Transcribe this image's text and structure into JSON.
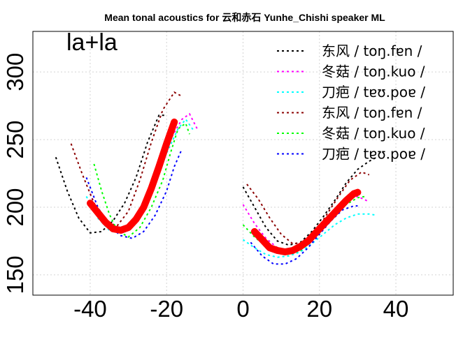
{
  "chart_data": {
    "type": "line",
    "title": "Mean tonal acoustics for 云和赤石 Yunhe_Chishi speaker ML",
    "panel_label": "la+la",
    "xlabel": "",
    "ylabel": "",
    "xlim": [
      -55,
      55
    ],
    "ylim": [
      135,
      330
    ],
    "x_ticks": [
      -40,
      -20,
      0,
      20,
      40
    ],
    "y_ticks": [
      150,
      200,
      250,
      300
    ],
    "x_tick_labels": [
      "-40",
      "-20",
      "0",
      "20",
      "40"
    ],
    "y_tick_labels": [
      "150",
      "200",
      "250",
      "300"
    ],
    "grid": true,
    "legend_position": "top-right",
    "legend": [
      {
        "label": "东风 / toŋ.fɐn /",
        "color": "#000000"
      },
      {
        "label": "冬菇 / toŋ.kuo /",
        "color": "#ff00ff"
      },
      {
        "label": "刀疤 / tɐʊ.poɐ /",
        "color": "#00ffff"
      },
      {
        "label": "东风 / toŋ.fɐn /",
        "color": "#8b0000"
      },
      {
        "label": "冬菇 / toŋ.kuo /",
        "color": "#00ff00"
      },
      {
        "label": "刀疤 / tɐʊ.poɐ /",
        "color": "#0000ff"
      }
    ],
    "series": [
      {
        "color": "#000000",
        "style": "dashed",
        "first": [
          [
            -49,
            237
          ],
          [
            -46,
            212
          ],
          [
            -43,
            192
          ],
          [
            -40,
            181
          ],
          [
            -37,
            182
          ],
          [
            -34,
            190
          ],
          [
            -31,
            203
          ],
          [
            -28,
            222
          ],
          [
            -25,
            248
          ],
          [
            -22,
            268
          ],
          [
            -20,
            268
          ]
        ],
        "second": [
          [
            0,
            215
          ],
          [
            3,
            200
          ],
          [
            6,
            185
          ],
          [
            9,
            175
          ],
          [
            12,
            172
          ],
          [
            15,
            174
          ],
          [
            18,
            182
          ],
          [
            21,
            193
          ],
          [
            24,
            205
          ],
          [
            27,
            218
          ],
          [
            30,
            228
          ],
          [
            33,
            234
          ],
          [
            35,
            237
          ]
        ]
      },
      {
        "color": "#ff00ff",
        "style": "dashed",
        "first": [
          [
            -40,
            210
          ],
          [
            -37,
            190
          ],
          [
            -34,
            182
          ],
          [
            -31,
            184
          ],
          [
            -28,
            193
          ],
          [
            -25,
            208
          ],
          [
            -22,
            228
          ],
          [
            -19,
            250
          ],
          [
            -16,
            265
          ],
          [
            -14,
            269
          ],
          [
            -12,
            258
          ]
        ],
        "second": [
          [
            0,
            202
          ],
          [
            3,
            188
          ],
          [
            6,
            177
          ],
          [
            9,
            170
          ],
          [
            12,
            168
          ],
          [
            15,
            170
          ],
          [
            18,
            178
          ],
          [
            21,
            188
          ],
          [
            24,
            198
          ],
          [
            27,
            206
          ],
          [
            30,
            208
          ],
          [
            33,
            204
          ]
        ]
      },
      {
        "color": "#00ffff",
        "style": "dashed",
        "first": [
          [
            -41,
            208
          ],
          [
            -38,
            192
          ],
          [
            -35,
            183
          ],
          [
            -32,
            182
          ],
          [
            -29,
            187
          ],
          [
            -26,
            198
          ],
          [
            -23,
            217
          ],
          [
            -20,
            240
          ],
          [
            -17,
            258
          ],
          [
            -15,
            265
          ],
          [
            -13,
            257
          ]
        ],
        "second": [
          [
            0,
            176
          ],
          [
            3,
            170
          ],
          [
            6,
            165
          ],
          [
            9,
            163
          ],
          [
            12,
            164
          ],
          [
            15,
            167
          ],
          [
            18,
            173
          ],
          [
            21,
            180
          ],
          [
            24,
            187
          ],
          [
            27,
            192
          ],
          [
            30,
            195
          ],
          [
            33,
            195
          ],
          [
            35,
            194
          ]
        ]
      },
      {
        "color": "#8b0000",
        "style": "dashed",
        "first": [
          [
            -45,
            247
          ],
          [
            -42,
            224
          ],
          [
            -39,
            203
          ],
          [
            -36,
            190
          ],
          [
            -33,
            186
          ],
          [
            -30,
            197
          ],
          [
            -27,
            220
          ],
          [
            -24,
            248
          ],
          [
            -21,
            272
          ],
          [
            -18,
            285
          ],
          [
            -16,
            282
          ]
        ],
        "second": [
          [
            1,
            217
          ],
          [
            4,
            206
          ],
          [
            7,
            192
          ],
          [
            10,
            180
          ],
          [
            13,
            173
          ],
          [
            16,
            174
          ],
          [
            19,
            182
          ],
          [
            22,
            195
          ],
          [
            25,
            208
          ],
          [
            28,
            220
          ],
          [
            31,
            226
          ],
          [
            33,
            224
          ]
        ]
      },
      {
        "color": "#00ff00",
        "style": "dashed",
        "first": [
          [
            -39,
            232
          ],
          [
            -37,
            212
          ],
          [
            -35,
            195
          ],
          [
            -33,
            183
          ],
          [
            -30,
            178
          ],
          [
            -27,
            185
          ],
          [
            -24,
            200
          ],
          [
            -21,
            220
          ],
          [
            -19,
            240
          ],
          [
            -17,
            258
          ],
          [
            -15,
            262
          ],
          [
            -14,
            254
          ]
        ],
        "second": [
          [
            0,
            187
          ],
          [
            3,
            178
          ],
          [
            6,
            171
          ],
          [
            9,
            166
          ],
          [
            12,
            165
          ],
          [
            15,
            168
          ],
          [
            18,
            175
          ],
          [
            21,
            184
          ],
          [
            24,
            193
          ],
          [
            27,
            202
          ],
          [
            30,
            207
          ],
          [
            32,
            208
          ]
        ]
      },
      {
        "color": "#0000ff",
        "style": "dashed",
        "first": [
          [
            -41,
            222
          ],
          [
            -38,
            200
          ],
          [
            -35,
            186
          ],
          [
            -32,
            179
          ],
          [
            -29,
            177
          ],
          [
            -26,
            182
          ],
          [
            -23,
            194
          ],
          [
            -20,
            212
          ],
          [
            -18,
            230
          ],
          [
            -16,
            243
          ]
        ],
        "second": [
          [
            2,
            174
          ],
          [
            5,
            164
          ],
          [
            8,
            158
          ],
          [
            11,
            158
          ],
          [
            14,
            162
          ],
          [
            17,
            170
          ],
          [
            20,
            180
          ],
          [
            23,
            190
          ],
          [
            26,
            198
          ],
          [
            29,
            201
          ],
          [
            30,
            201
          ]
        ]
      },
      {
        "color": "#ff0000",
        "style": "thick",
        "first": [
          [
            -40,
            203
          ],
          [
            -38,
            196
          ],
          [
            -36,
            189
          ],
          [
            -34,
            184
          ],
          [
            -32,
            183
          ],
          [
            -30,
            185
          ],
          [
            -28,
            191
          ],
          [
            -26,
            200
          ],
          [
            -24,
            214
          ],
          [
            -22,
            230
          ],
          [
            -20,
            247
          ],
          [
            -18,
            263
          ]
        ],
        "second": [
          [
            3,
            182
          ],
          [
            5,
            176
          ],
          [
            7,
            170
          ],
          [
            9,
            168
          ],
          [
            11,
            167
          ],
          [
            13,
            168
          ],
          [
            15,
            171
          ],
          [
            17,
            175
          ],
          [
            19,
            181
          ],
          [
            21,
            187
          ],
          [
            23,
            193
          ],
          [
            25,
            199
          ],
          [
            27,
            205
          ],
          [
            29,
            210
          ],
          [
            30,
            211
          ]
        ]
      }
    ]
  }
}
